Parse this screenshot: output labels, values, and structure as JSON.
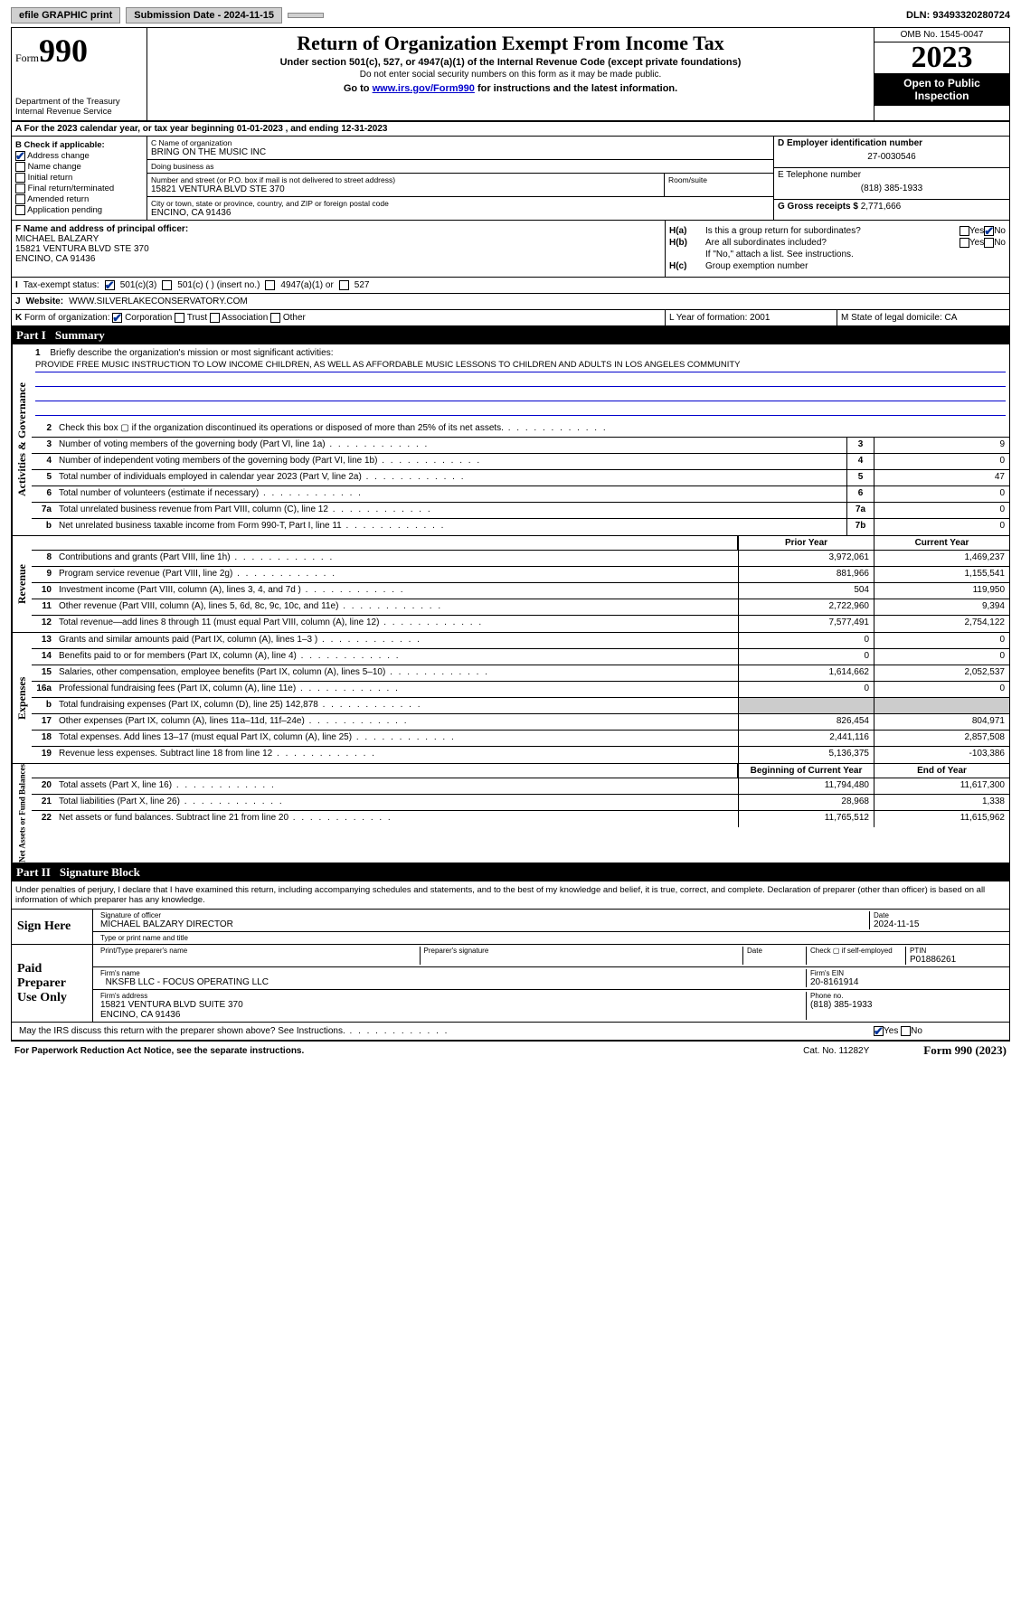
{
  "topbar": {
    "efile": "efile GRAPHIC print",
    "submission": "Submission Date - 2024-11-15",
    "dln": "DLN: 93493320280724"
  },
  "header": {
    "form_label": "Form",
    "form_number": "990",
    "dept": "Department of the Treasury\nInternal Revenue Service",
    "title": "Return of Organization Exempt From Income Tax",
    "section": "Under section 501(c), 527, or 4947(a)(1) of the Internal Revenue Code (except private foundations)",
    "ssn_note": "Do not enter social security numbers on this form as it may be made public.",
    "goto_prefix": "Go to ",
    "goto_link": "www.irs.gov/Form990",
    "goto_suffix": " for instructions and the latest information.",
    "omb": "OMB No. 1545-0047",
    "year": "2023",
    "open": "Open to Public Inspection"
  },
  "row_a": "A For the 2023 calendar year, or tax year beginning 01-01-2023    , and ending 12-31-2023",
  "col_b": {
    "header": "B Check if applicable:",
    "items": [
      "Address change",
      "Name change",
      "Initial return",
      "Final return/terminated",
      "Amended return",
      "Application pending"
    ],
    "checked": [
      true,
      false,
      false,
      false,
      false,
      false
    ]
  },
  "col_c": {
    "name_lbl": "C Name of organization",
    "name": "BRING ON THE MUSIC INC",
    "dba_lbl": "Doing business as",
    "dba": "",
    "street_lbl": "Number and street (or P.O. box if mail is not delivered to street address)",
    "street": "15821 VENTURA BLVD STE 370",
    "room_lbl": "Room/suite",
    "room": "",
    "city_lbl": "City or town, state or province, country, and ZIP or foreign postal code",
    "city": "ENCINO, CA  91436"
  },
  "col_d": {
    "ein_lbl": "D Employer identification number",
    "ein": "27-0030546",
    "phone_lbl": "E Telephone number",
    "phone": "(818) 385-1933",
    "gross_lbl": "G Gross receipts $",
    "gross": "2,771,666"
  },
  "row_f": {
    "label": "F Name and address of principal officer:",
    "officer": "MICHAEL BALZARY\n15821 VENTURA BLVD STE 370\nENCINO, CA  91436",
    "h_a_lbl": "H(a)",
    "h_a_txt": "Is this a group return for subordinates?",
    "h_a_yes": "Yes",
    "h_a_no": "No",
    "h_b_lbl": "H(b)",
    "h_b_txt": "Are all subordinates included?",
    "h_b_note": "If \"No,\" attach a list. See instructions.",
    "h_c_lbl": "H(c)",
    "h_c_txt": "Group exemption number"
  },
  "row_i": {
    "label": "I",
    "text": "Tax-exempt status:",
    "opt1": "501(c)(3)",
    "opt2": "501(c) (  ) (insert no.)",
    "opt3": "4947(a)(1) or",
    "opt4": "527"
  },
  "row_j": {
    "label": "J",
    "text": "Website:",
    "value": "WWW.SILVERLAKECONSERVATORY.COM"
  },
  "row_k": {
    "label": "K",
    "text": "Form of organization:",
    "opts": [
      "Corporation",
      "Trust",
      "Association",
      "Other"
    ],
    "l_text": "L Year of formation: 2001",
    "m_text": "M State of legal domicile: CA"
  },
  "part1": {
    "part": "Part I",
    "title": "Summary"
  },
  "mission": {
    "num": "1",
    "label": "Briefly describe the organization's mission or most significant activities:",
    "text": "PROVIDE FREE MUSIC INSTRUCTION TO LOW INCOME CHILDREN, AS WELL AS AFFORDABLE MUSIC LESSONS TO CHILDREN AND ADULTS IN LOS ANGELES COMMUNITY"
  },
  "gov_lines": [
    {
      "num": "2",
      "text": "Check this box ▢ if the organization discontinued its operations or disposed of more than 25% of its net assets.",
      "box": "",
      "amt": ""
    },
    {
      "num": "3",
      "text": "Number of voting members of the governing body (Part VI, line 1a)",
      "box": "3",
      "amt": "9"
    },
    {
      "num": "4",
      "text": "Number of independent voting members of the governing body (Part VI, line 1b)",
      "box": "4",
      "amt": "0"
    },
    {
      "num": "5",
      "text": "Total number of individuals employed in calendar year 2023 (Part V, line 2a)",
      "box": "5",
      "amt": "47"
    },
    {
      "num": "6",
      "text": "Total number of volunteers (estimate if necessary)",
      "box": "6",
      "amt": "0"
    },
    {
      "num": "7a",
      "text": "Total unrelated business revenue from Part VIII, column (C), line 12",
      "box": "7a",
      "amt": "0"
    },
    {
      "num": "b",
      "text": "Net unrelated business taxable income from Form 990-T, Part I, line 11",
      "box": "7b",
      "amt": "0"
    }
  ],
  "col_headers": {
    "prior": "Prior Year",
    "current": "Current Year"
  },
  "revenue": [
    {
      "num": "8",
      "text": "Contributions and grants (Part VIII, line 1h)",
      "prior": "3,972,061",
      "current": "1,469,237"
    },
    {
      "num": "9",
      "text": "Program service revenue (Part VIII, line 2g)",
      "prior": "881,966",
      "current": "1,155,541"
    },
    {
      "num": "10",
      "text": "Investment income (Part VIII, column (A), lines 3, 4, and 7d )",
      "prior": "504",
      "current": "119,950"
    },
    {
      "num": "11",
      "text": "Other revenue (Part VIII, column (A), lines 5, 6d, 8c, 9c, 10c, and 11e)",
      "prior": "2,722,960",
      "current": "9,394"
    },
    {
      "num": "12",
      "text": "Total revenue—add lines 8 through 11 (must equal Part VIII, column (A), line 12)",
      "prior": "7,577,491",
      "current": "2,754,122"
    }
  ],
  "expenses": [
    {
      "num": "13",
      "text": "Grants and similar amounts paid (Part IX, column (A), lines 1–3 )",
      "prior": "0",
      "current": "0"
    },
    {
      "num": "14",
      "text": "Benefits paid to or for members (Part IX, column (A), line 4)",
      "prior": "0",
      "current": "0"
    },
    {
      "num": "15",
      "text": "Salaries, other compensation, employee benefits (Part IX, column (A), lines 5–10)",
      "prior": "1,614,662",
      "current": "2,052,537"
    },
    {
      "num": "16a",
      "text": "Professional fundraising fees (Part IX, column (A), line 11e)",
      "prior": "0",
      "current": "0"
    },
    {
      "num": "b",
      "text": "Total fundraising expenses (Part IX, column (D), line 25) 142,878",
      "prior": "",
      "current": "",
      "shade": true
    },
    {
      "num": "17",
      "text": "Other expenses (Part IX, column (A), lines 11a–11d, 11f–24e)",
      "prior": "826,454",
      "current": "804,971"
    },
    {
      "num": "18",
      "text": "Total expenses. Add lines 13–17 (must equal Part IX, column (A), line 25)",
      "prior": "2,441,116",
      "current": "2,857,508"
    },
    {
      "num": "19",
      "text": "Revenue less expenses. Subtract line 18 from line 12",
      "prior": "5,136,375",
      "current": "-103,386"
    }
  ],
  "na_headers": {
    "beg": "Beginning of Current Year",
    "end": "End of Year"
  },
  "netassets": [
    {
      "num": "20",
      "text": "Total assets (Part X, line 16)",
      "prior": "11,794,480",
      "current": "11,617,300"
    },
    {
      "num": "21",
      "text": "Total liabilities (Part X, line 26)",
      "prior": "28,968",
      "current": "1,338"
    },
    {
      "num": "22",
      "text": "Net assets or fund balances. Subtract line 21 from line 20",
      "prior": "11,765,512",
      "current": "11,615,962"
    }
  ],
  "vtabs": {
    "gov": "Activities & Governance",
    "rev": "Revenue",
    "exp": "Expenses",
    "na": "Net Assets or Fund Balances"
  },
  "part2": {
    "part": "Part II",
    "title": "Signature Block"
  },
  "sig": {
    "perjury": "Under penalties of perjury, I declare that I have examined this return, including accompanying schedules and statements, and to the best of my knowledge and belief, it is true, correct, and complete. Declaration of preparer (other than officer) is based on all information of which preparer has any knowledge.",
    "sign_here": "Sign Here",
    "sig_officer_lbl": "Signature of officer",
    "officer_name": "MICHAEL BALZARY  DIRECTOR",
    "type_lbl": "Type or print name and title",
    "date_lbl": "Date",
    "date_val": "2024-11-15",
    "paid": "Paid Preparer Use Only",
    "prep_name_lbl": "Print/Type preparer's name",
    "prep_sig_lbl": "Preparer's signature",
    "check_self": "Check ▢ if self-employed",
    "ptin_lbl": "PTIN",
    "ptin": "P01886261",
    "firm_name_lbl": "Firm's name",
    "firm_name": "NKSFB LLC - FOCUS OPERATING LLC",
    "firm_ein_lbl": "Firm's EIN",
    "firm_ein": "20-8161914",
    "firm_addr_lbl": "Firm's address",
    "firm_addr": "15821 VENTURA BLVD SUITE 370\nENCINO, CA  91436",
    "phone_lbl": "Phone no.",
    "phone": "(818) 385-1933",
    "discuss": "May the IRS discuss this return with the preparer shown above? See Instructions.",
    "yes": "Yes",
    "no": "No"
  },
  "footer": {
    "left": "For Paperwork Reduction Act Notice, see the separate instructions.",
    "cat": "Cat. No. 11282Y",
    "right": "Form 990 (2023)"
  }
}
